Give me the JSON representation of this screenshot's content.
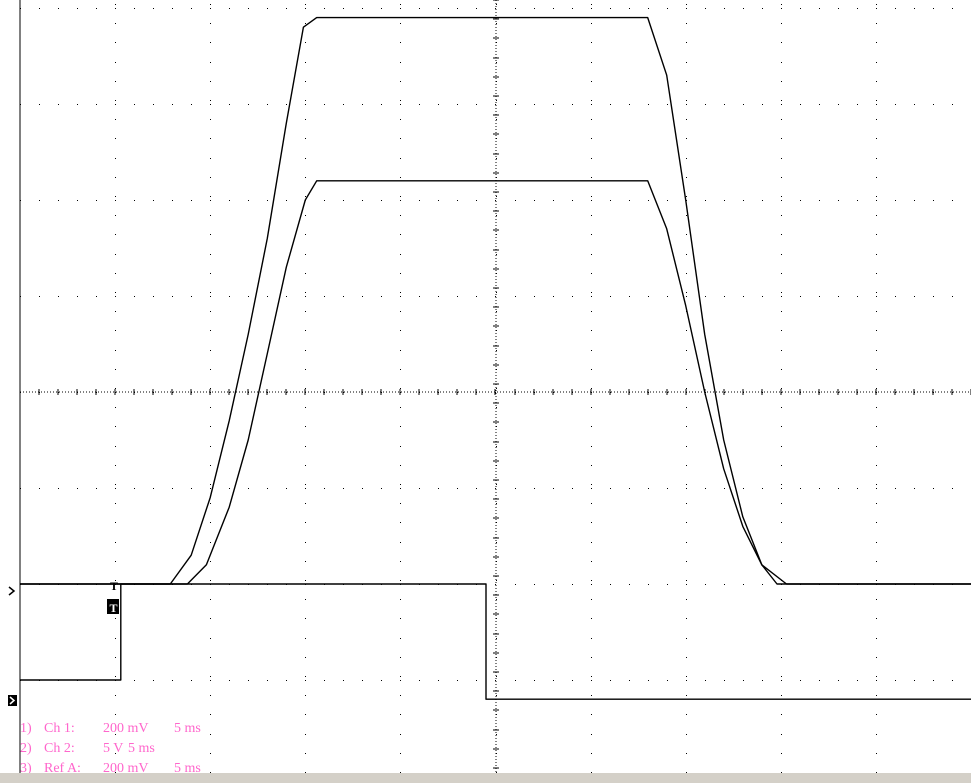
{
  "chart_data": {
    "type": "line",
    "title": "",
    "grid": true,
    "divisions": {
      "x": 10,
      "y": 8
    },
    "x": {
      "unit": "ms",
      "per_div": 5,
      "range_ms": [
        -2.0,
        48.0
      ]
    },
    "series": [
      {
        "name": "Ch 1",
        "scale_label": "200 mV",
        "time_label": "5 ms",
        "color": "#000000",
        "ground_div": -2.0,
        "points_ms_div": [
          [
            -2.0,
            0.0
          ],
          [
            5.9,
            0.0
          ],
          [
            7.0,
            0.3
          ],
          [
            8.0,
            0.9
          ],
          [
            9.0,
            1.7
          ],
          [
            10.0,
            2.6
          ],
          [
            11.0,
            3.6
          ],
          [
            12.0,
            4.8
          ],
          [
            12.9,
            5.8
          ],
          [
            13.6,
            5.9
          ],
          [
            31.0,
            5.9
          ],
          [
            32.0,
            5.3
          ],
          [
            33.0,
            4.0
          ],
          [
            34.0,
            2.6
          ],
          [
            35.0,
            1.5
          ],
          [
            36.0,
            0.7
          ],
          [
            37.0,
            0.2
          ],
          [
            37.8,
            0.0
          ],
          [
            48.0,
            0.0
          ]
        ]
      },
      {
        "name": "Ch 2",
        "scale_label": "5 V",
        "time_label": "5 ms",
        "color": "#000000",
        "ground_div": -3.0,
        "points_ms_div": [
          [
            -2.0,
            0.0
          ],
          [
            3.3,
            0.0
          ],
          [
            3.3,
            1.0
          ],
          [
            22.5,
            1.0
          ],
          [
            22.5,
            -0.2
          ],
          [
            48.0,
            -0.2
          ]
        ]
      },
      {
        "name": "Ref A",
        "scale_label": "200 mV",
        "time_label": "5 ms",
        "color": "#000000",
        "ground_div": -2.0,
        "points_ms_div": [
          [
            -2.0,
            0.0
          ],
          [
            6.8,
            0.0
          ],
          [
            7.8,
            0.2
          ],
          [
            9.0,
            0.8
          ],
          [
            10.0,
            1.5
          ],
          [
            11.0,
            2.4
          ],
          [
            12.0,
            3.3
          ],
          [
            13.0,
            4.0
          ],
          [
            13.6,
            4.2
          ],
          [
            31.0,
            4.2
          ],
          [
            32.0,
            3.7
          ],
          [
            33.0,
            2.9
          ],
          [
            34.0,
            2.0
          ],
          [
            35.0,
            1.2
          ],
          [
            36.0,
            0.6
          ],
          [
            37.0,
            0.2
          ],
          [
            38.3,
            0.0
          ],
          [
            48.0,
            0.0
          ]
        ]
      }
    ],
    "trigger_label": "T",
    "legend": [
      {
        "index": "1)",
        "name": "Ch 1:",
        "volts": "200 mV",
        "time": "5 ms"
      },
      {
        "index": "2)",
        "name": "Ch 2:",
        "volts": "5 V",
        "time": "5 ms"
      },
      {
        "index": "3)",
        "name": "Ref A:",
        "volts": "200 mV",
        "time": "5 ms"
      }
    ],
    "legend_color": "#ff66cc",
    "grid_color": "#000000",
    "background": "#ffffff"
  }
}
